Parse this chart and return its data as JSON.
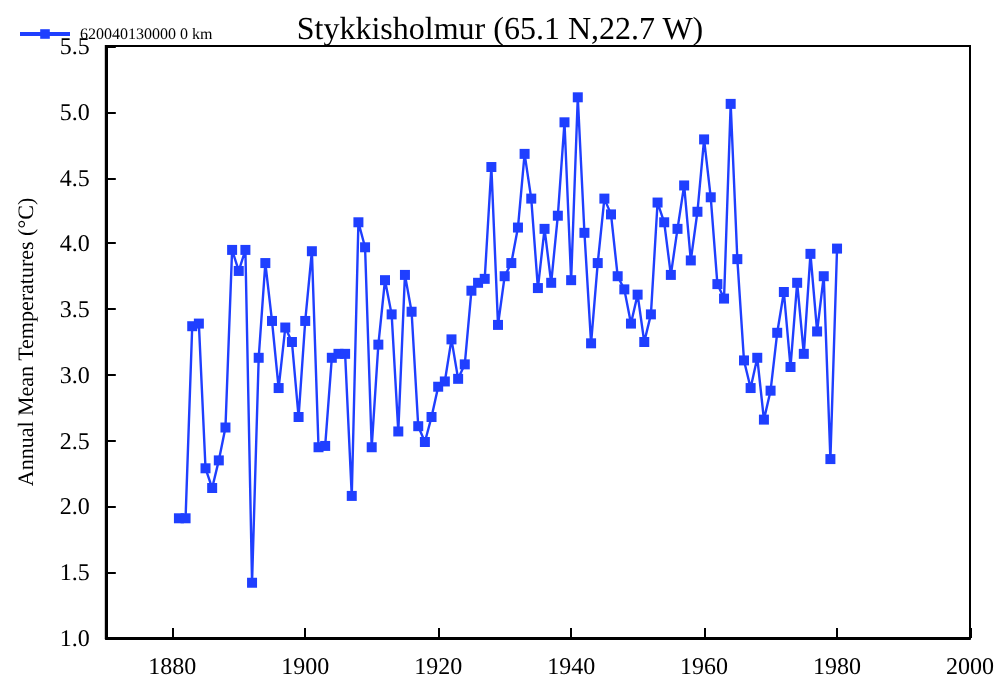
{
  "chart_data": {
    "type": "line",
    "title": "Stykkisholmur (65.1 N,22.7 W)",
    "ylabel": "Annual Mean Temperatures (°C)",
    "x": [
      1881,
      1882,
      1883,
      1884,
      1885,
      1886,
      1887,
      1888,
      1889,
      1890,
      1891,
      1892,
      1893,
      1894,
      1895,
      1896,
      1897,
      1898,
      1899,
      1900,
      1901,
      1902,
      1903,
      1904,
      1905,
      1906,
      1907,
      1908,
      1909,
      1910,
      1911,
      1912,
      1913,
      1914,
      1915,
      1916,
      1917,
      1918,
      1919,
      1920,
      1921,
      1922,
      1923,
      1924,
      1925,
      1926,
      1927,
      1928,
      1929,
      1930,
      1931,
      1932,
      1933,
      1934,
      1935,
      1936,
      1937,
      1938,
      1939,
      1940,
      1941,
      1942,
      1943,
      1944,
      1945,
      1946,
      1947,
      1948,
      1949,
      1950,
      1951,
      1952,
      1953,
      1954,
      1955,
      1956,
      1957,
      1958,
      1959,
      1960,
      1961,
      1962,
      1963,
      1964,
      1965,
      1966,
      1967,
      1968,
      1969,
      1970,
      1971,
      1972,
      1973,
      1974,
      1975,
      1976,
      1977,
      1978,
      1979,
      1980
    ],
    "series": [
      {
        "name": "620040130000 0 km",
        "color": "#1f3fff",
        "values": [
          1.91,
          1.91,
          3.37,
          3.39,
          2.29,
          2.14,
          2.35,
          2.6,
          3.95,
          3.79,
          3.95,
          1.42,
          3.13,
          3.85,
          3.41,
          2.9,
          3.36,
          3.25,
          2.68,
          3.41,
          3.94,
          2.45,
          2.46,
          3.13,
          3.16,
          3.16,
          2.08,
          4.16,
          3.97,
          2.45,
          3.23,
          3.72,
          3.46,
          2.57,
          3.76,
          3.48,
          2.61,
          2.49,
          2.68,
          2.91,
          2.95,
          3.27,
          2.97,
          3.08,
          3.64,
          3.7,
          3.73,
          4.58,
          3.38,
          3.75,
          3.85,
          4.12,
          4.68,
          4.34,
          3.66,
          4.11,
          3.7,
          4.21,
          4.92,
          3.72,
          5.11,
          4.08,
          3.24,
          3.85,
          4.34,
          4.22,
          3.75,
          3.65,
          3.39,
          3.61,
          3.25,
          3.46,
          4.31,
          4.16,
          3.76,
          4.11,
          4.44,
          3.87,
          4.24,
          4.79,
          4.35,
          3.69,
          3.58,
          5.06,
          3.88,
          3.11,
          2.9,
          3.13,
          2.66,
          2.88,
          3.32,
          3.63,
          3.06,
          3.7,
          3.16,
          3.92,
          3.33,
          3.75,
          2.36,
          3.96
        ]
      }
    ],
    "xlim": [
      1870,
      2000
    ],
    "xticks": [
      1880,
      1900,
      1920,
      1940,
      1960,
      1980,
      2000
    ],
    "ylim": [
      1,
      5.5
    ],
    "yticks": [
      {
        "value": 1,
        "label": "1.0"
      },
      {
        "value": 1.5,
        "label": "1.5"
      },
      {
        "value": 2,
        "label": "2.0"
      },
      {
        "value": 2.5,
        "label": "2.5"
      },
      {
        "value": 3,
        "label": "3.0"
      },
      {
        "value": 3.5,
        "label": "3.5"
      },
      {
        "value": 4,
        "label": "4.0"
      },
      {
        "value": 4.5,
        "label": "4.5"
      },
      {
        "value": 5,
        "label": "5.0"
      },
      {
        "value": 5.5,
        "label": "5.5"
      }
    ],
    "grid": false,
    "legend": "top left",
    "marker": "square",
    "line_style": "solid"
  }
}
